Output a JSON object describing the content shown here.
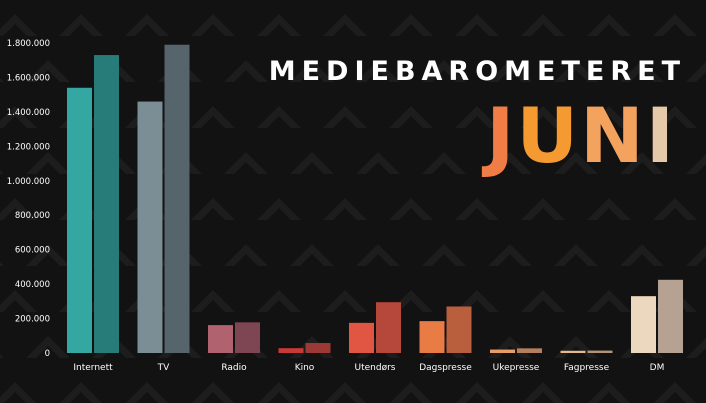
{
  "header": {
    "title": "MEDIEBAROMETERET",
    "month": "JUNI",
    "month_letter_colors": [
      "#ef7d45",
      "#f59a30",
      "#f4a35e",
      "#e6c9a8"
    ]
  },
  "chart_data": {
    "type": "bar",
    "categories": [
      "Internett",
      "TV",
      "Radio",
      "Kino",
      "Utendørs",
      "Dagspresse",
      "Ukepresse",
      "Fagpresse",
      "DM"
    ],
    "series": [
      {
        "values": [
          1540000,
          1460000,
          162000,
          28000,
          175000,
          185000,
          20000,
          13000,
          330000
        ]
      },
      {
        "values": [
          1730000,
          1790000,
          178000,
          58000,
          295000,
          270000,
          27000,
          14000,
          425000
        ]
      }
    ],
    "ylim": [
      0,
      1800000
    ],
    "yticks": [
      0,
      200000,
      400000,
      600000,
      800000,
      1000000,
      1200000,
      1400000,
      1600000,
      1800000
    ],
    "ytick_labels": [
      "0",
      "200.000",
      "400.000",
      "600.000",
      "800.000",
      "1.000.000",
      "1.200.000",
      "1.400.000",
      "1.600.000",
      "1.800.000"
    ],
    "colors": [
      [
        "#35a7a3",
        "#277b79"
      ],
      [
        "#7b8d95",
        "#56646b"
      ],
      [
        "#b0626f",
        "#7e4552"
      ],
      [
        "#c73a37",
        "#9c3934"
      ],
      [
        "#e15642",
        "#b5473b"
      ],
      [
        "#e97b45",
        "#b95f3e"
      ],
      [
        "#e89d68",
        "#b2805f"
      ],
      [
        "#e6b88e",
        "#b49479"
      ],
      [
        "#ecd7bf",
        "#b5a292"
      ]
    ],
    "grid": false,
    "legend": "none"
  }
}
